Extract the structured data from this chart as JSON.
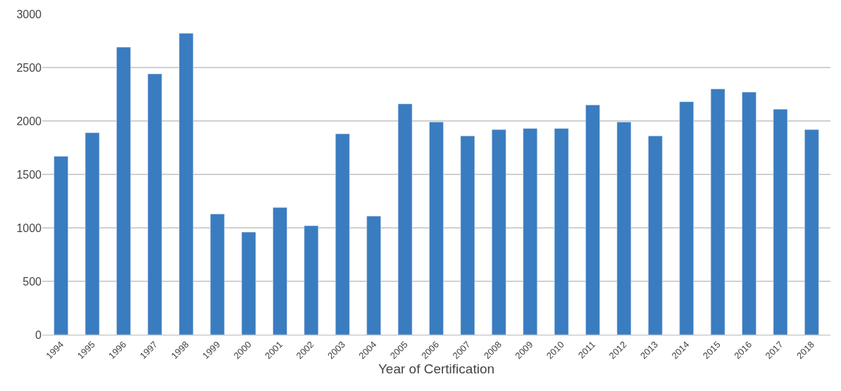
{
  "chart_data": {
    "type": "bar",
    "xlabel": "Year of Certification",
    "categories": [
      "1994",
      "1995",
      "1996",
      "1997",
      "1998",
      "1999",
      "2000",
      "2001",
      "2002",
      "2003",
      "2004",
      "2005",
      "2006",
      "2007",
      "2008",
      "2009",
      "2010",
      "2011",
      "2012",
      "2013",
      "2014",
      "2015",
      "2016",
      "2017",
      "2018"
    ],
    "values": [
      1670,
      1890,
      2690,
      2440,
      2820,
      1130,
      960,
      1190,
      1020,
      1880,
      1110,
      2160,
      1990,
      1860,
      1920,
      1930,
      1930,
      2150,
      1990,
      1860,
      2180,
      2300,
      2270,
      2110,
      1920
    ],
    "color": "#3a7cc0",
    "ylim": [
      0,
      3000
    ],
    "yticks": [
      0,
      500,
      1000,
      1500,
      2000,
      2500,
      3000
    ],
    "grid": "y"
  }
}
